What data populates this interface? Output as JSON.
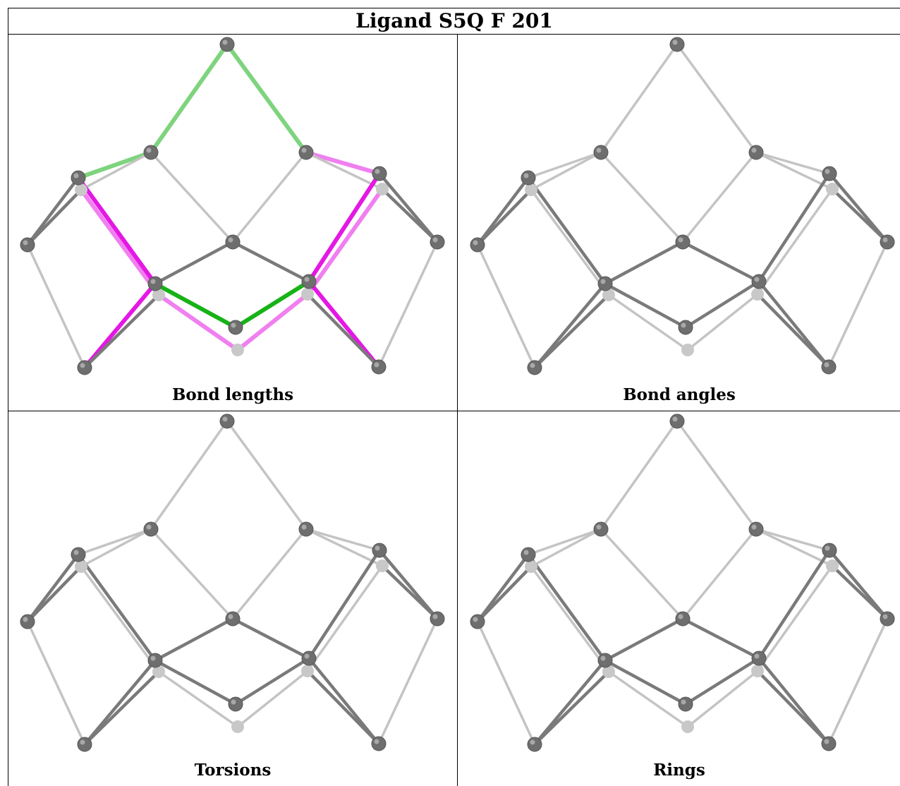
{
  "title": "Ligand S5Q F 201",
  "panels": [
    {
      "caption": "Bond lengths",
      "highlight": true
    },
    {
      "caption": "Bond angles",
      "highlight": false
    },
    {
      "caption": "Torsions",
      "highlight": false
    },
    {
      "caption": "Rings",
      "highlight": false
    }
  ],
  "colors": {
    "atom": "#6e6e6e",
    "atom_back": "#c8c8c8",
    "bond_front": "#7a7a7a",
    "bond_back": "#c4c4c4",
    "short_bond": "#16b216",
    "long_bond": "#e418e4"
  }
}
